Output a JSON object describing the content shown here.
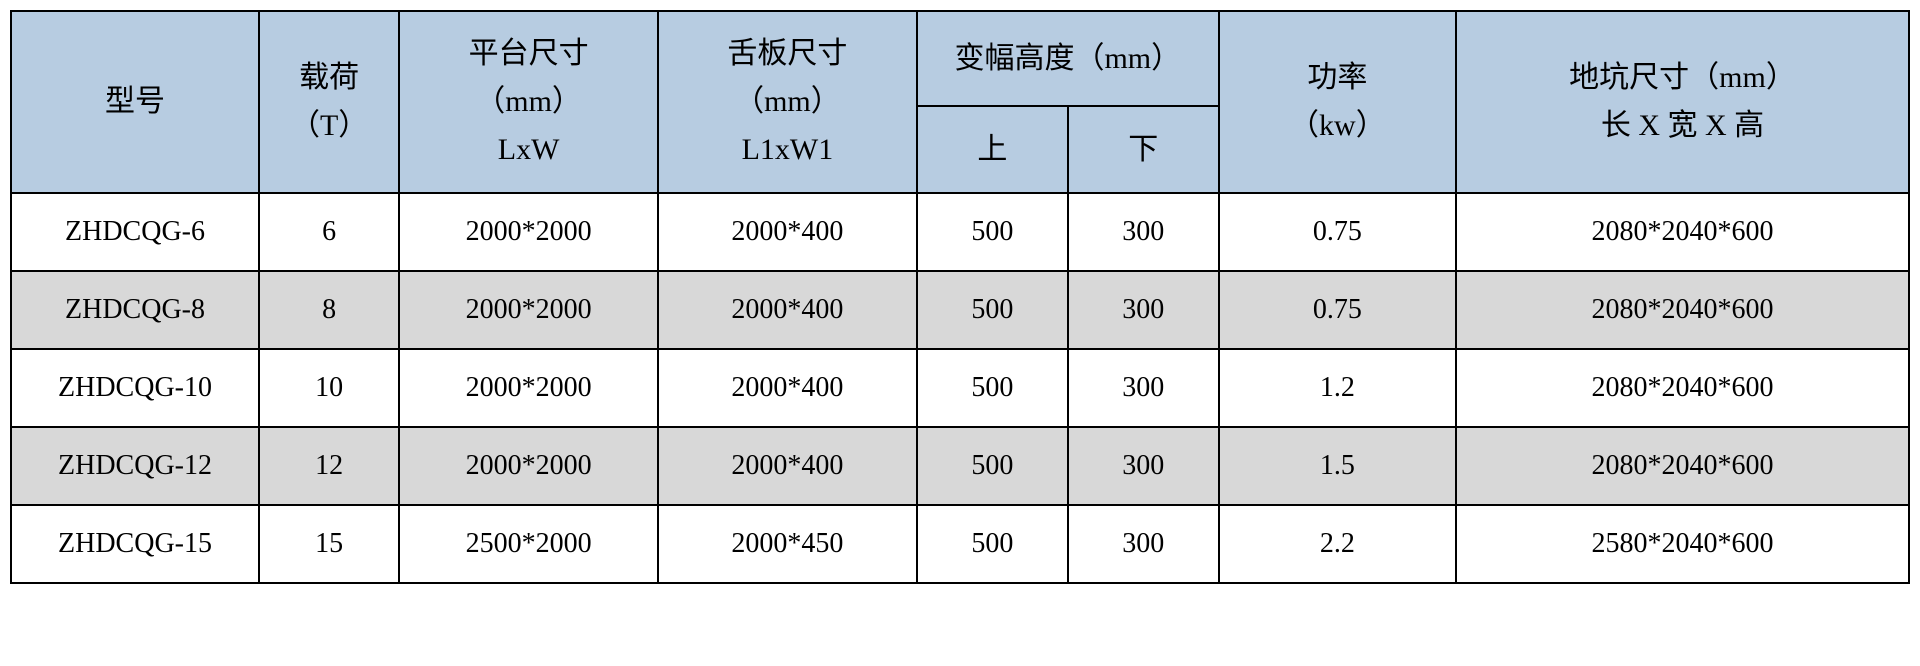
{
  "table": {
    "header_bg_color": "#b7cce1",
    "row_even_bg_color": "#d8d8d8",
    "row_odd_bg_color": "#ffffff",
    "border_color": "#000000",
    "text_color": "#000000",
    "font_size_header": 30,
    "font_size_body": 28,
    "headers": {
      "model": "型号",
      "load_line1": "载荷",
      "load_line2": "（T）",
      "platform_line1": "平台尺寸",
      "platform_line2": "（mm）",
      "platform_line3": "LxW",
      "tongue_line1": "舌板尺寸",
      "tongue_line2": "（mm）",
      "tongue_line3": "L1xW1",
      "amplitude": "变幅高度（mm）",
      "amplitude_up": "上",
      "amplitude_down": "下",
      "power_line1": "功率",
      "power_line2": "（kw）",
      "pit_line1": "地坑尺寸（mm）",
      "pit_line2": "长 X 宽 X 高"
    },
    "rows": [
      {
        "model": "ZHDCQG-6",
        "load": "6",
        "platform": "2000*2000",
        "tongue": "2000*400",
        "up": "500",
        "down": "300",
        "power": "0.75",
        "pit": "2080*2040*600"
      },
      {
        "model": "ZHDCQG-8",
        "load": "8",
        "platform": "2000*2000",
        "tongue": "2000*400",
        "up": "500",
        "down": "300",
        "power": "0.75",
        "pit": "2080*2040*600"
      },
      {
        "model": "ZHDCQG-10",
        "load": "10",
        "platform": "2000*2000",
        "tongue": "2000*400",
        "up": "500",
        "down": "300",
        "power": "1.2",
        "pit": "2080*2040*600"
      },
      {
        "model": "ZHDCQG-12",
        "load": "12",
        "platform": "2000*2000",
        "tongue": "2000*400",
        "up": "500",
        "down": "300",
        "power": "1.5",
        "pit": "2080*2040*600"
      },
      {
        "model": "ZHDCQG-15",
        "load": "15",
        "platform": "2500*2000",
        "tongue": "2000*450",
        "up": "500",
        "down": "300",
        "power": "2.2",
        "pit": "2580*2040*600"
      }
    ]
  }
}
